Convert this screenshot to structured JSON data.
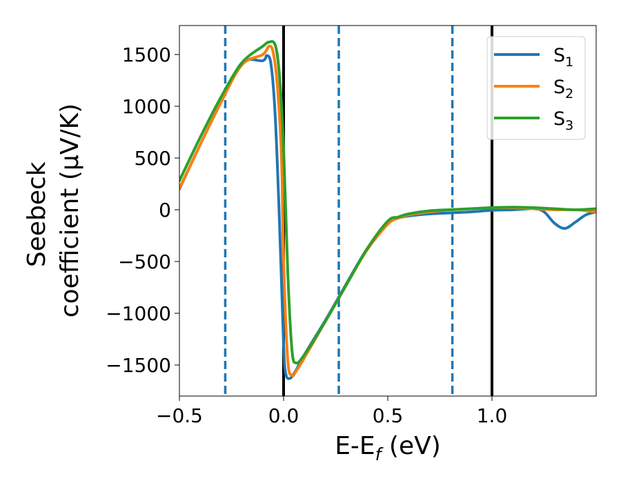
{
  "chart_data": {
    "type": "line",
    "title": "",
    "xlabel": {
      "main": "E-E",
      "sub": "f",
      "suffix": " (eV)"
    },
    "ylabel": {
      "line1": "Seebeck",
      "line2": "coefficient  (μV/K)"
    },
    "xlim": [
      -0.5,
      1.5
    ],
    "ylim": [
      -1800,
      1780
    ],
    "x_ticks": [
      -0.5,
      0.0,
      0.5,
      1.0
    ],
    "x_tick_labels": [
      "−0.5",
      "0.0",
      "0.5",
      "1.0"
    ],
    "y_ticks": [
      1500,
      1000,
      500,
      0,
      -500,
      -1000,
      -1500
    ],
    "y_tick_labels": [
      "1500",
      "1000",
      "500",
      "0",
      "−500",
      "−1000",
      "−1500"
    ],
    "grid": false,
    "legend_position": "top-right",
    "vlines": [
      {
        "x": -0.28,
        "style": "dashed",
        "color": "#1f77b4"
      },
      {
        "x": 0.0,
        "style": "solid",
        "color": "#000000"
      },
      {
        "x": 0.265,
        "style": "dashed",
        "color": "#1f77b4"
      },
      {
        "x": 0.81,
        "style": "dashed",
        "color": "#1f77b4"
      },
      {
        "x": 1.0,
        "style": "solid",
        "color": "#000000"
      }
    ],
    "series": [
      {
        "name": "S",
        "sub": "1",
        "color": "#1f77b4",
        "points": [
          [
            -0.5,
            200
          ],
          [
            -0.4,
            630
          ],
          [
            -0.3,
            1040
          ],
          [
            -0.2,
            1420
          ],
          [
            -0.1,
            1440
          ],
          [
            -0.08,
            1490
          ],
          [
            -0.06,
            1400
          ],
          [
            -0.04,
            900
          ],
          [
            -0.02,
            -100
          ],
          [
            0.0,
            -1300
          ],
          [
            0.01,
            -1580
          ],
          [
            0.03,
            -1630
          ],
          [
            0.06,
            -1550
          ],
          [
            0.1,
            -1400
          ],
          [
            0.2,
            -1070
          ],
          [
            0.3,
            -720
          ],
          [
            0.4,
            -380
          ],
          [
            0.5,
            -130
          ],
          [
            0.55,
            -80
          ],
          [
            0.6,
            -60
          ],
          [
            0.7,
            -40
          ],
          [
            0.8,
            -30
          ],
          [
            0.9,
            -20
          ],
          [
            1.0,
            -5
          ],
          [
            1.1,
            0
          ],
          [
            1.2,
            10
          ],
          [
            1.25,
            -20
          ],
          [
            1.3,
            -130
          ],
          [
            1.35,
            -180
          ],
          [
            1.4,
            -120
          ],
          [
            1.45,
            -50
          ],
          [
            1.5,
            -20
          ]
        ]
      },
      {
        "name": "S",
        "sub": "2",
        "color": "#ff7f0e",
        "points": [
          [
            -0.5,
            205
          ],
          [
            -0.4,
            630
          ],
          [
            -0.3,
            1040
          ],
          [
            -0.2,
            1400
          ],
          [
            -0.1,
            1500
          ],
          [
            -0.07,
            1580
          ],
          [
            -0.05,
            1520
          ],
          [
            -0.03,
            1200
          ],
          [
            -0.01,
            500
          ],
          [
            0.0,
            -500
          ],
          [
            0.02,
            -1450
          ],
          [
            0.04,
            -1600
          ],
          [
            0.06,
            -1560
          ],
          [
            0.1,
            -1430
          ],
          [
            0.2,
            -1080
          ],
          [
            0.3,
            -730
          ],
          [
            0.4,
            -390
          ],
          [
            0.5,
            -140
          ],
          [
            0.55,
            -80
          ],
          [
            0.6,
            -50
          ],
          [
            0.7,
            -20
          ],
          [
            0.8,
            0
          ],
          [
            0.9,
            10
          ],
          [
            1.0,
            20
          ],
          [
            1.1,
            20
          ],
          [
            1.2,
            10
          ],
          [
            1.3,
            0
          ],
          [
            1.4,
            0
          ],
          [
            1.5,
            -20
          ]
        ]
      },
      {
        "name": "S",
        "sub": "3",
        "color": "#2ca02c",
        "points": [
          [
            -0.5,
            280
          ],
          [
            -0.4,
            700
          ],
          [
            -0.3,
            1090
          ],
          [
            -0.2,
            1420
          ],
          [
            -0.1,
            1580
          ],
          [
            -0.07,
            1620
          ],
          [
            -0.04,
            1590
          ],
          [
            -0.02,
            1300
          ],
          [
            0.0,
            600
          ],
          [
            0.02,
            -600
          ],
          [
            0.04,
            -1350
          ],
          [
            0.06,
            -1480
          ],
          [
            0.1,
            -1400
          ],
          [
            0.2,
            -1080
          ],
          [
            0.3,
            -730
          ],
          [
            0.4,
            -380
          ],
          [
            0.5,
            -110
          ],
          [
            0.55,
            -70
          ],
          [
            0.6,
            -40
          ],
          [
            0.7,
            -10
          ],
          [
            0.8,
            0
          ],
          [
            0.9,
            10
          ],
          [
            1.0,
            20
          ],
          [
            1.1,
            25
          ],
          [
            1.2,
            20
          ],
          [
            1.3,
            10
          ],
          [
            1.4,
            0
          ],
          [
            1.5,
            10
          ]
        ]
      }
    ]
  }
}
